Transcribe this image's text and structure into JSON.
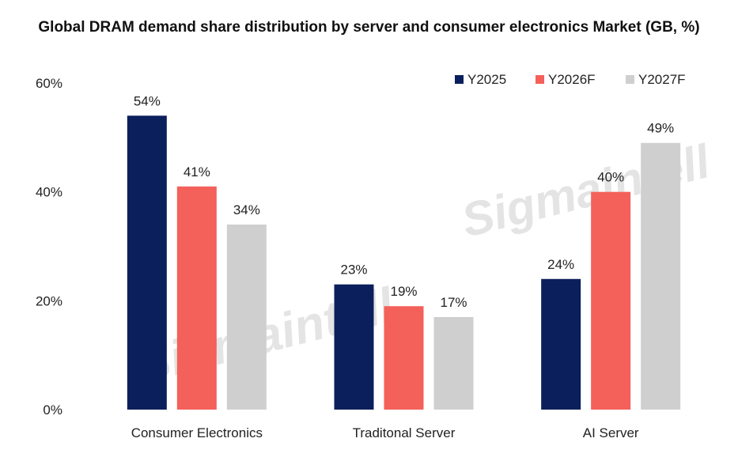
{
  "chart_data": {
    "type": "bar",
    "title": "Global DRAM demand share distribution by server and consumer electronics Market (GB, %)",
    "categories": [
      "Consumer Electronics",
      "Traditonal Server",
      "AI Server"
    ],
    "series": [
      {
        "name": "Y2025",
        "values": [
          54,
          23,
          24
        ],
        "color": "#0b1f5c"
      },
      {
        "name": "Y2026F",
        "values": [
          41,
          19,
          40
        ],
        "color": "#f4605a"
      },
      {
        "name": "Y2027F",
        "values": [
          34,
          17,
          49
        ],
        "color": "#cfcfcf"
      }
    ],
    "value_suffix": "%",
    "ylim": [
      0,
      60
    ],
    "yticks": [
      0,
      20,
      40,
      60
    ],
    "ytick_labels": [
      "0%",
      "20%",
      "40%",
      "60%"
    ],
    "xlabel": "",
    "ylabel": "",
    "grid": false,
    "legend_position": "top-right"
  },
  "watermark": {
    "text": "Sigmaintell"
  }
}
